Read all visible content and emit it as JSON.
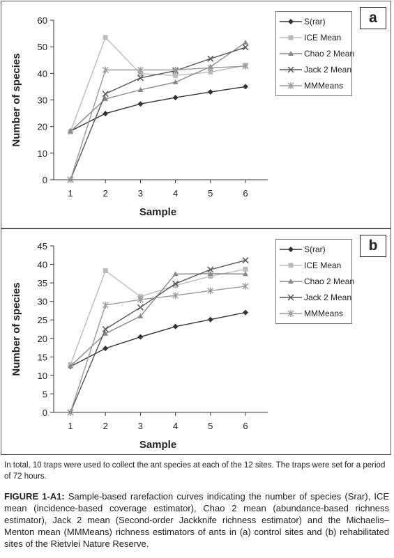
{
  "chart_data": [
    {
      "type": "line",
      "panel_label": "a",
      "x": [
        1,
        2,
        3,
        4,
        5,
        6
      ],
      "xlabel": "Sample",
      "ylabel": "Number of species",
      "ylim": [
        0,
        60
      ],
      "yticks": [
        0,
        10,
        20,
        30,
        40,
        50,
        60
      ],
      "legend_position": "top-right",
      "series": [
        {
          "name": "S(rar)",
          "values": [
            18.3,
            24.9,
            28.5,
            30.9,
            33.0,
            35.0
          ],
          "color": "#333333",
          "marker": "diamond"
        },
        {
          "name": "ICE Mean",
          "values": [
            18.0,
            53.5,
            39.9,
            39.2,
            40.5,
            43.0
          ],
          "color": "#bbbbbb",
          "marker": "square"
        },
        {
          "name": "Chao 2 Mean",
          "values": [
            18.2,
            30.4,
            33.8,
            36.7,
            42.5,
            51.6
          ],
          "color": "#888888",
          "marker": "triangle"
        },
        {
          "name": "Jack 2 Mean",
          "values": [
            0,
            32.3,
            38.3,
            41.0,
            45.5,
            49.8
          ],
          "color": "#555555",
          "marker": "x"
        },
        {
          "name": "MMMeans",
          "values": [
            0,
            41.3,
            41.3,
            41.3,
            42.1,
            42.7
          ],
          "color": "#999999",
          "marker": "asterisk"
        }
      ]
    },
    {
      "type": "line",
      "panel_label": "b",
      "x": [
        1,
        2,
        3,
        4,
        5,
        6
      ],
      "xlabel": "Sample",
      "ylabel": "Number of species",
      "ylim": [
        0,
        45
      ],
      "yticks": [
        0,
        5,
        10,
        15,
        20,
        25,
        30,
        35,
        40,
        45
      ],
      "legend_position": "top-right",
      "series": [
        {
          "name": "S(rar)",
          "values": [
            12.4,
            17.3,
            20.4,
            23.2,
            25.1,
            27.0
          ],
          "color": "#333333",
          "marker": "diamond"
        },
        {
          "name": "ICE Mean",
          "values": [
            12.9,
            38.3,
            31.3,
            34.3,
            36.8,
            38.7
          ],
          "color": "#bbbbbb",
          "marker": "square"
        },
        {
          "name": "Chao 2 Mean",
          "values": [
            12.5,
            21.3,
            26.0,
            37.4,
            37.5,
            37.4
          ],
          "color": "#888888",
          "marker": "triangle"
        },
        {
          "name": "Jack 2 Mean",
          "values": [
            0,
            22.5,
            28.4,
            34.8,
            38.6,
            41.1
          ],
          "color": "#555555",
          "marker": "x"
        },
        {
          "name": "MMMeans",
          "values": [
            0,
            29.0,
            30.5,
            31.6,
            32.9,
            34.1
          ],
          "color": "#999999",
          "marker": "asterisk"
        }
      ]
    }
  ],
  "note": "In total, 10 traps were used to collect the ant species at each of the 12 sites. The traps were set for a period of 72 hours.",
  "caption": {
    "label": "FIGURE 1-A1:",
    "text": " Sample-based rarefaction curves indicating the number of species (Srar), ICE mean (incidence-based coverage estimator), Chao 2 mean (abundance-based richness estimator), Jack 2 mean (Second-order Jackknife richness estimator) and the Michaelis–Menton mean (MMMeans) richness estimators of ants in (a) control sites and (b) rehabilitated sites of the Rietvlei Nature Reserve."
  }
}
